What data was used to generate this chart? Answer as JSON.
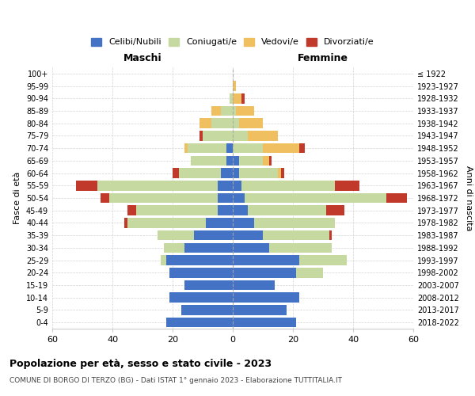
{
  "age_groups": [
    "0-4",
    "5-9",
    "10-14",
    "15-19",
    "20-24",
    "25-29",
    "30-34",
    "35-39",
    "40-44",
    "45-49",
    "50-54",
    "55-59",
    "60-64",
    "65-69",
    "70-74",
    "75-79",
    "80-84",
    "85-89",
    "90-94",
    "95-99",
    "100+"
  ],
  "birth_years": [
    "2018-2022",
    "2013-2017",
    "2008-2012",
    "2003-2007",
    "1998-2002",
    "1993-1997",
    "1988-1992",
    "1983-1987",
    "1978-1982",
    "1973-1977",
    "1968-1972",
    "1963-1967",
    "1958-1962",
    "1953-1957",
    "1948-1952",
    "1943-1947",
    "1938-1942",
    "1933-1937",
    "1928-1932",
    "1923-1927",
    "≤ 1922"
  ],
  "males": {
    "celibi": [
      22,
      17,
      21,
      16,
      21,
      22,
      16,
      13,
      9,
      5,
      5,
      5,
      4,
      2,
      2,
      0,
      0,
      0,
      0,
      0,
      0
    ],
    "coniugati": [
      0,
      0,
      0,
      0,
      0,
      2,
      7,
      12,
      26,
      27,
      36,
      40,
      14,
      12,
      13,
      10,
      7,
      4,
      1,
      0,
      0
    ],
    "vedovi": [
      0,
      0,
      0,
      0,
      0,
      0,
      0,
      0,
      0,
      0,
      0,
      0,
      0,
      0,
      1,
      0,
      4,
      3,
      0,
      0,
      0
    ],
    "divorziati": [
      0,
      0,
      0,
      0,
      0,
      0,
      0,
      0,
      1,
      3,
      3,
      7,
      2,
      0,
      0,
      1,
      0,
      0,
      0,
      0,
      0
    ]
  },
  "females": {
    "nubili": [
      21,
      18,
      22,
      14,
      21,
      22,
      12,
      10,
      7,
      5,
      4,
      3,
      2,
      2,
      0,
      0,
      0,
      0,
      0,
      0,
      0
    ],
    "coniugate": [
      0,
      0,
      0,
      0,
      9,
      16,
      21,
      22,
      27,
      26,
      47,
      31,
      13,
      8,
      10,
      5,
      2,
      1,
      0,
      0,
      0
    ],
    "vedove": [
      0,
      0,
      0,
      0,
      0,
      0,
      0,
      0,
      0,
      0,
      0,
      0,
      1,
      2,
      12,
      10,
      8,
      6,
      3,
      1,
      0
    ],
    "divorziate": [
      0,
      0,
      0,
      0,
      0,
      0,
      0,
      1,
      0,
      6,
      7,
      8,
      1,
      1,
      2,
      0,
      0,
      0,
      1,
      0,
      0
    ]
  },
  "color_celibi": "#4472c4",
  "color_coniugati": "#c5d9a0",
  "color_vedovi": "#f0c060",
  "color_divorziati": "#c0392b",
  "title1": "Popolazione per età, sesso e stato civile - 2023",
  "title2": "COMUNE DI BORGO DI TERZO (BG) - Dati ISTAT 1° gennaio 2023 - Elaborazione TUTTITALIA.IT",
  "xlabel_left": "Maschi",
  "xlabel_right": "Femmine",
  "ylabel_left": "Fasce di età",
  "ylabel_right": "Anni di nascita",
  "xlim": 60,
  "legend_labels": [
    "Celibi/Nubili",
    "Coniugati/e",
    "Vedovi/e",
    "Divorziati/e"
  ]
}
